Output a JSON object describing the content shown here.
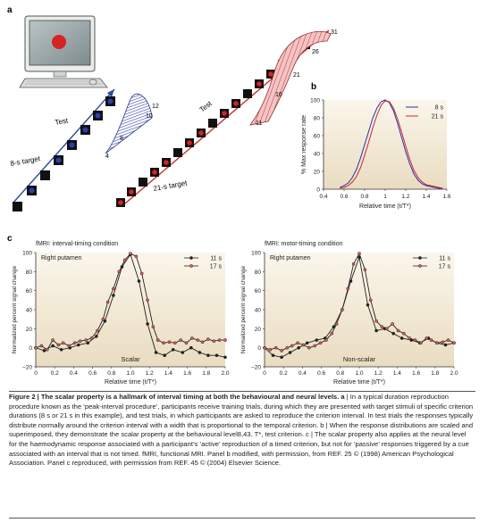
{
  "panel_labels": {
    "a": "a",
    "b": "b",
    "c": "c"
  },
  "panel_a": {
    "test_label_1": "Test",
    "target_label_1": "8-s target",
    "test_label_2": "Test",
    "target_label_2": "21-s target",
    "dist8_ticks": [
      "4",
      "8",
      "10",
      "12"
    ],
    "dist21_ticks": [
      "11",
      "16",
      "21",
      "26",
      "31"
    ],
    "colors": {
      "blue_stim": "#2b3fb0",
      "red_stim": "#d42424",
      "dist_blue": "#3344aa",
      "dist_red": "#d46060",
      "arrow_blue": "#2a4a9a",
      "arrow_red": "#c43030"
    }
  },
  "panel_b": {
    "chart_data": {
      "type": "line",
      "xlabel": "Relative time (t/T*)",
      "ylabel": "% Max response rate",
      "xlim": [
        0.4,
        1.6
      ],
      "ylim": [
        0,
        100
      ],
      "x_ticks": [
        "0.4",
        "0.6",
        "0.8",
        "1",
        "1.2",
        "1.4",
        "1.6"
      ],
      "y_ticks": [
        "0",
        "20",
        "40",
        "60",
        "80",
        "100"
      ],
      "legend_position": "top-right",
      "series": [
        {
          "name": "8 s",
          "color": "#2233aa",
          "x": [
            0.56,
            0.6,
            0.64,
            0.68,
            0.72,
            0.76,
            0.8,
            0.84,
            0.88,
            0.92,
            0.96,
            1.0,
            1.04,
            1.08,
            1.12,
            1.16,
            1.2,
            1.24,
            1.28,
            1.32,
            1.36,
            1.4,
            1.44,
            1.48,
            1.52,
            1.56
          ],
          "y": [
            2,
            4,
            7,
            13,
            22,
            35,
            50,
            65,
            80,
            91,
            98,
            100,
            97,
            88,
            74,
            58,
            42,
            28,
            17,
            10,
            6,
            4,
            3,
            2,
            1,
            1
          ]
        },
        {
          "name": "21 s",
          "color": "#cc2233",
          "x": [
            0.56,
            0.6,
            0.64,
            0.68,
            0.72,
            0.76,
            0.8,
            0.84,
            0.88,
            0.92,
            0.96,
            1.0,
            1.04,
            1.08,
            1.12,
            1.16,
            1.2,
            1.24,
            1.28,
            1.32,
            1.36,
            1.4,
            1.44,
            1.48,
            1.52,
            1.56
          ],
          "y": [
            1,
            2,
            4,
            8,
            14,
            24,
            38,
            53,
            69,
            83,
            94,
            99,
            98,
            91,
            79,
            64,
            48,
            33,
            21,
            13,
            8,
            5,
            4,
            3,
            2,
            1
          ]
        }
      ]
    }
  },
  "panel_c": {
    "charts": [
      {
        "title": "fMRI: interval-timing condition",
        "region": "Right putamen",
        "note": "Scalar",
        "chart_data": {
          "type": "line",
          "xlabel": "Relative time (t/T*)",
          "ylabel": "Normalized percent signal change",
          "xlim": [
            0,
            2.0
          ],
          "ylim": [
            -20,
            100
          ],
          "x_ticks": [
            "0",
            "0.2",
            "0.4",
            "0.6",
            "0.8",
            "1.0",
            "1.2",
            "1.4",
            "1.6",
            "1.8",
            "2.0"
          ],
          "y_ticks": [
            "−20",
            "0",
            "20",
            "40",
            "60",
            "80",
            "100"
          ],
          "legend_position": "top-right",
          "series": [
            {
              "name": "11 s",
              "marker": "filled",
              "x": [
                0,
                0.09,
                0.18,
                0.27,
                0.36,
                0.45,
                0.55,
                0.64,
                0.73,
                0.82,
                0.91,
                1.0,
                1.09,
                1.18,
                1.27,
                1.36,
                1.45,
                1.55,
                1.64,
                1.73,
                1.82,
                1.91,
                2.0
              ],
              "y": [
                0,
                -3,
                2,
                -2,
                0,
                3,
                5,
                12,
                28,
                55,
                85,
                98,
                70,
                25,
                -5,
                -8,
                -2,
                -5,
                0,
                -5,
                -8,
                -8,
                -10
              ]
            },
            {
              "name": "17 s",
              "marker": "open",
              "x": [
                0,
                0.06,
                0.12,
                0.18,
                0.24,
                0.29,
                0.35,
                0.41,
                0.47,
                0.53,
                0.59,
                0.65,
                0.71,
                0.76,
                0.82,
                0.88,
                0.94,
                1.0,
                1.06,
                1.12,
                1.18,
                1.24,
                1.29,
                1.35,
                1.41,
                1.47,
                1.53,
                1.59,
                1.65,
                1.71,
                1.76,
                1.82,
                1.88,
                1.94,
                2.0
              ],
              "y": [
                0,
                2,
                -2,
                8,
                3,
                5,
                2,
                5,
                7,
                8,
                10,
                18,
                30,
                48,
                62,
                80,
                92,
                99,
                96,
                78,
                50,
                22,
                8,
                5,
                6,
                5,
                8,
                5,
                10,
                8,
                6,
                9,
                7,
                8,
                8
              ]
            }
          ]
        }
      },
      {
        "title": "fMRI: motor-timing condition",
        "region": "Right putamen",
        "note": "Non-scalar",
        "chart_data": {
          "type": "line",
          "xlabel": "Relative time (t/T*)",
          "ylabel": "Normalized percent signal change",
          "xlim": [
            0,
            2.0
          ],
          "ylim": [
            -20,
            100
          ],
          "x_ticks": [
            "0",
            "0.2",
            "0.4",
            "0.6",
            "0.8",
            "1.0",
            "1.2",
            "1.4",
            "1.6",
            "1.8",
            "2.0"
          ],
          "y_ticks": [
            "−20",
            "0",
            "20",
            "40",
            "60",
            "80",
            "100"
          ],
          "legend_position": "top-right",
          "series": [
            {
              "name": "11 s",
              "marker": "filled",
              "x": [
                0,
                0.09,
                0.18,
                0.27,
                0.36,
                0.45,
                0.55,
                0.64,
                0.73,
                0.82,
                0.91,
                1.0,
                1.09,
                1.18,
                1.27,
                1.36,
                1.45,
                1.55,
                1.64,
                1.73,
                1.82,
                1.91,
                2.0
              ],
              "y": [
                0,
                -8,
                -10,
                -5,
                0,
                5,
                8,
                10,
                22,
                40,
                70,
                95,
                45,
                18,
                20,
                15,
                10,
                8,
                5,
                10,
                5,
                3,
                5
              ]
            },
            {
              "name": "17 s",
              "marker": "open",
              "x": [
                0,
                0.06,
                0.12,
                0.18,
                0.24,
                0.29,
                0.35,
                0.41,
                0.47,
                0.53,
                0.59,
                0.65,
                0.71,
                0.76,
                0.82,
                0.88,
                0.94,
                1.0,
                1.06,
                1.12,
                1.18,
                1.24,
                1.29,
                1.35,
                1.41,
                1.47,
                1.53,
                1.59,
                1.65,
                1.71,
                1.76,
                1.82,
                1.88,
                1.94,
                2.0
              ],
              "y": [
                0,
                -2,
                0,
                -3,
                0,
                2,
                5,
                3,
                0,
                2,
                5,
                8,
                15,
                25,
                40,
                62,
                88,
                99,
                82,
                50,
                28,
                22,
                20,
                25,
                18,
                15,
                10,
                8,
                5,
                10,
                8,
                5,
                6,
                8,
                5
              ]
            }
          ]
        }
      }
    ]
  },
  "caption": {
    "lead": "Figure 2 | ",
    "title": "The scalar property is a hallmark of interval timing at both the behavioural and neural levels. a",
    "body": " | In a typical duration reproduction procedure known as the ‘peak-interval procedure’, participants receive training trials, during which they are presented with target stimuli of specific criterion durations (8 s or 21 s in this example), and test trials, in which participants are asked to reproduce the criterion interval. In test trials the responses typically distribute normally around the criterion interval with a width that is proportional to the temporal criterion. b | When the response distributions are scaled and superimposed, they demonstrate the scalar property at the behavioural level8,43. T*, test criterion. c | The scalar property also applies at the neural level for the haemodynamic response associated with a participant’s ‘active’ reproduction of a timed criterion, but not for ‘passive’ responses triggered by a cue associated with an interval that is not timed. fMRI, functional MRI. Panel b modified, with permission, from REF. 25 © (1998) American Psychological Association. Panel c reproduced, with permission from REF. 45 © (2004) Elsevier Science."
  }
}
